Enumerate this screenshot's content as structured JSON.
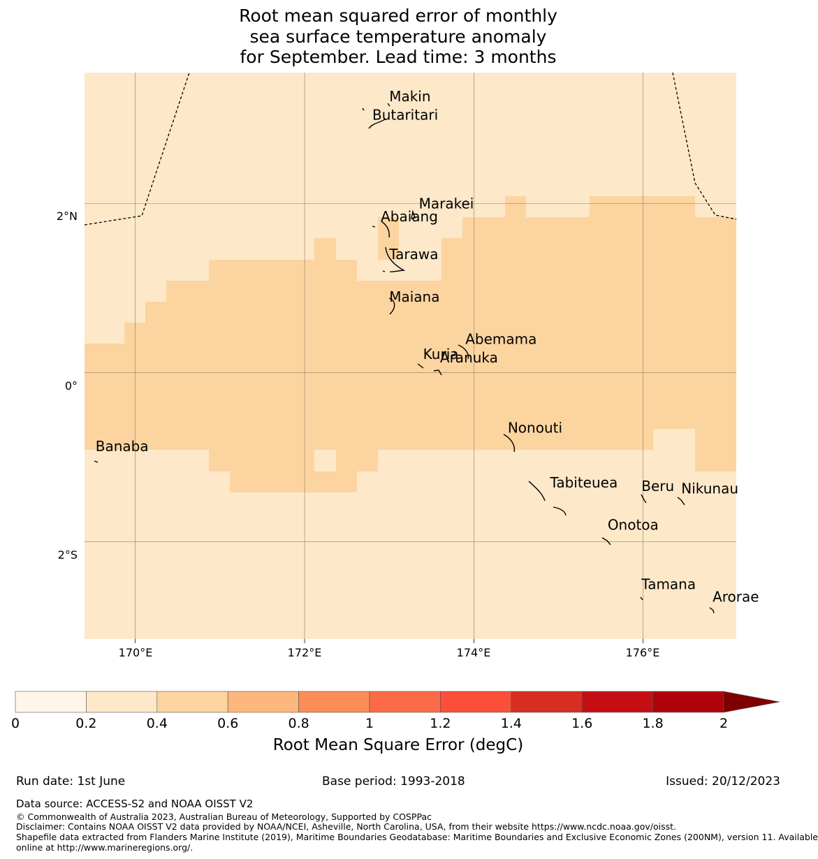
{
  "title": {
    "line1": "Root mean squared error of monthly",
    "line2": "sea surface temperature anomaly",
    "line3": "for September. Lead time: 3 months"
  },
  "map": {
    "lon_range": [
      169.4,
      177.1
    ],
    "lat_range": [
      -3.15,
      3.55
    ],
    "lon_ticks": [
      {
        "value": 170,
        "label": "170°E"
      },
      {
        "value": 172,
        "label": "172°E"
      },
      {
        "value": 174,
        "label": "174°E"
      },
      {
        "value": 176,
        "label": "176°E"
      }
    ],
    "lat_ticks": [
      {
        "value": 2,
        "label": "2°N"
      },
      {
        "value": 0,
        "label": "0°"
      },
      {
        "value": -2,
        "label": "2°S"
      }
    ],
    "islands": [
      {
        "name": "Makin",
        "lon": 173.0,
        "lat": 3.27
      },
      {
        "name": "Butaritari",
        "lon": 172.8,
        "lat": 3.05
      },
      {
        "name": "Marakei",
        "lon": 173.35,
        "lat": 2.0
      },
      {
        "name": "Abaiang",
        "lon": 172.9,
        "lat": 1.85
      },
      {
        "name": "Tarawa",
        "lon": 173.0,
        "lat": 1.4
      },
      {
        "name": "Maiana",
        "lon": 173.0,
        "lat": 0.9
      },
      {
        "name": "Abemama",
        "lon": 173.9,
        "lat": 0.4
      },
      {
        "name": "Kuria",
        "lon": 173.4,
        "lat": 0.22
      },
      {
        "name": "Aranuka",
        "lon": 173.6,
        "lat": 0.18
      },
      {
        "name": "Nonouti",
        "lon": 174.4,
        "lat": -0.65
      },
      {
        "name": "Banaba",
        "lon": 169.53,
        "lat": -0.87
      },
      {
        "name": "Tabiteuea",
        "lon": 174.9,
        "lat": -1.3
      },
      {
        "name": "Beru",
        "lon": 175.98,
        "lat": -1.34
      },
      {
        "name": "Nikunau",
        "lon": 176.45,
        "lat": -1.37
      },
      {
        "name": "Onotoa",
        "lon": 175.58,
        "lat": -1.8
      },
      {
        "name": "Tamana",
        "lon": 175.98,
        "lat": -2.5
      },
      {
        "name": "Arorae",
        "lon": 176.82,
        "lat": -2.65
      }
    ]
  },
  "colorbar": {
    "label": "Root Mean Square Error (degC)",
    "ticks": [
      "0",
      "0.2",
      "0.4",
      "0.6",
      "0.8",
      "1",
      "1.2",
      "1.4",
      "1.6",
      "1.8",
      "2"
    ],
    "colors": [
      "#fff5e8",
      "#fde8c9",
      "#fcd49f",
      "#fcb77c",
      "#fc8d58",
      "#fc6a47",
      "#fb4f3a",
      "#d72d23",
      "#c50e14",
      "#b00309",
      "#7f0000"
    ]
  },
  "footer": {
    "run_date": "Run date: 1st June",
    "base_period": "Base period: 1993-2018",
    "issued": "Issued: 20/12/2023",
    "data_source": "Data source: ACCESS-S2 and NOAA OISST V2",
    "copyright": "© Commonwealth of Australia 2023, Australian Bureau of Meteorology, Supported by COSPPac",
    "disclaimer": "Disclaimer: Contains NOAA OISST V2 data provided by NOAA/NCEI, Asheville, North Carolina, USA, from their website https://www.ncdc.noaa.gov/oisst.",
    "shapefile_line1": "Shapefile data extracted from Flanders Marine Institute (2019), Maritime Boundaries Geodatabase: Maritime Boundaries and Exclusive Economic Zones (200NM), version 11. Available",
    "shapefile_line2": "online at http://www.marineregions.org/."
  }
}
